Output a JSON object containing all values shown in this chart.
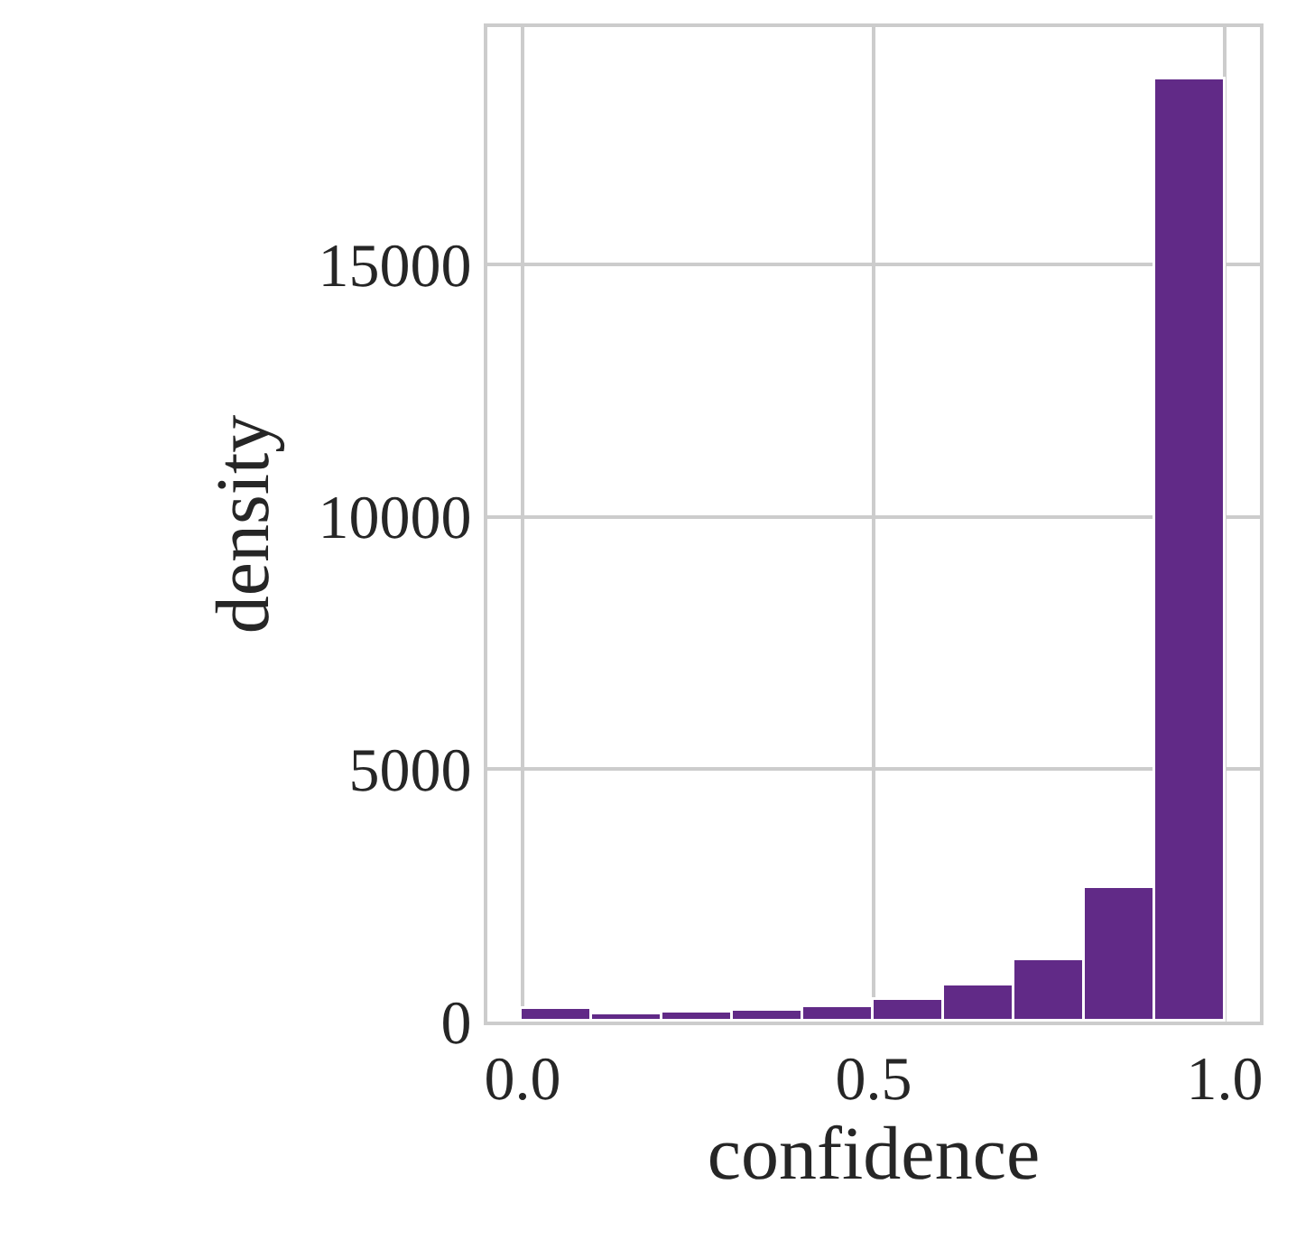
{
  "chart_data": {
    "type": "histogram",
    "xlabel": "confidence",
    "ylabel": "density",
    "bins": [
      0.0,
      0.1,
      0.2,
      0.3,
      0.4,
      0.5,
      0.6,
      0.7,
      0.8,
      0.9,
      1.0
    ],
    "values": [
      250,
      140,
      180,
      210,
      290,
      440,
      700,
      1200,
      2630,
      18680
    ],
    "color": "#612a87",
    "xlim": [
      -0.05,
      1.05
    ],
    "xticks": [
      {
        "value": 0.0,
        "label": "0.0"
      },
      {
        "value": 0.5,
        "label": "0.5"
      },
      {
        "value": 1.0,
        "label": "1.0"
      }
    ],
    "ylim": [
      0,
      19700
    ],
    "yticks": [
      0,
      5000,
      10000,
      15000
    ],
    "grid": true
  }
}
